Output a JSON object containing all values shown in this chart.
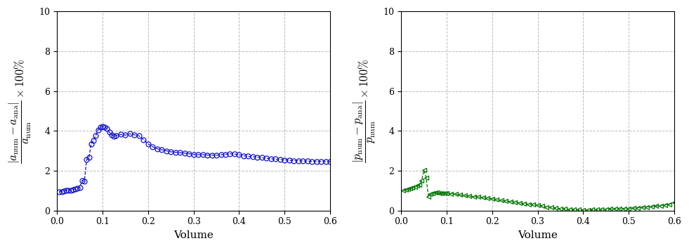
{
  "left": {
    "ylabel": "$\\dfrac{|a_{\\mathrm{num}} - a_{\\mathrm{ana}}|}{a_{\\mathrm{num}}} \\times 100\\%$",
    "xlabel": "Volume",
    "xlim": [
      0.0,
      0.6
    ],
    "ylim": [
      0.0,
      10.0
    ],
    "yticks": [
      0,
      2,
      4,
      6,
      8,
      10
    ],
    "xticks": [
      0.0,
      0.1,
      0.2,
      0.3,
      0.4,
      0.5,
      0.6
    ],
    "color": "#1111cc",
    "x": [
      0.005,
      0.01,
      0.015,
      0.02,
      0.025,
      0.03,
      0.035,
      0.04,
      0.045,
      0.05,
      0.055,
      0.06,
      0.065,
      0.07,
      0.075,
      0.08,
      0.085,
      0.09,
      0.095,
      0.1,
      0.105,
      0.11,
      0.115,
      0.12,
      0.125,
      0.13,
      0.14,
      0.15,
      0.16,
      0.17,
      0.18,
      0.19,
      0.2,
      0.21,
      0.22,
      0.23,
      0.24,
      0.25,
      0.26,
      0.27,
      0.28,
      0.29,
      0.3,
      0.31,
      0.32,
      0.33,
      0.34,
      0.35,
      0.36,
      0.37,
      0.38,
      0.39,
      0.4,
      0.41,
      0.42,
      0.43,
      0.44,
      0.45,
      0.46,
      0.47,
      0.48,
      0.49,
      0.5,
      0.51,
      0.52,
      0.53,
      0.54,
      0.55,
      0.56,
      0.57,
      0.58,
      0.59,
      0.6
    ],
    "y": [
      0.95,
      0.95,
      0.97,
      1.0,
      1.0,
      1.02,
      1.05,
      1.08,
      1.12,
      1.15,
      1.5,
      1.47,
      2.55,
      2.65,
      3.35,
      3.52,
      3.75,
      4.05,
      4.18,
      4.22,
      4.18,
      4.1,
      3.92,
      3.8,
      3.72,
      3.75,
      3.82,
      3.78,
      3.85,
      3.8,
      3.75,
      3.55,
      3.35,
      3.2,
      3.1,
      3.05,
      3.0,
      2.95,
      2.92,
      2.9,
      2.88,
      2.85,
      2.82,
      2.8,
      2.8,
      2.78,
      2.78,
      2.77,
      2.8,
      2.82,
      2.85,
      2.83,
      2.8,
      2.75,
      2.72,
      2.7,
      2.68,
      2.65,
      2.62,
      2.6,
      2.58,
      2.56,
      2.54,
      2.52,
      2.5,
      2.5,
      2.49,
      2.48,
      2.47,
      2.47,
      2.46,
      2.46,
      2.46
    ]
  },
  "right": {
    "ylabel": "$\\dfrac{|p_{\\mathrm{num}} - p_{\\mathrm{ana}}|}{p_{\\mathrm{num}}} \\times 100\\%$",
    "xlabel": "Volume",
    "xlim": [
      0.0,
      0.6
    ],
    "ylim": [
      0.0,
      10.0
    ],
    "yticks": [
      0,
      2,
      4,
      6,
      8,
      10
    ],
    "xticks": [
      0.0,
      0.1,
      0.2,
      0.3,
      0.4,
      0.5,
      0.6
    ],
    "color": "#007700",
    "x": [
      0.005,
      0.01,
      0.015,
      0.02,
      0.025,
      0.03,
      0.035,
      0.04,
      0.045,
      0.05,
      0.055,
      0.06,
      0.065,
      0.07,
      0.075,
      0.08,
      0.085,
      0.09,
      0.095,
      0.1,
      0.11,
      0.12,
      0.13,
      0.14,
      0.15,
      0.16,
      0.17,
      0.18,
      0.19,
      0.2,
      0.21,
      0.22,
      0.23,
      0.24,
      0.25,
      0.26,
      0.27,
      0.28,
      0.29,
      0.3,
      0.31,
      0.32,
      0.33,
      0.34,
      0.35,
      0.36,
      0.37,
      0.38,
      0.39,
      0.4,
      0.41,
      0.42,
      0.43,
      0.44,
      0.45,
      0.46,
      0.47,
      0.48,
      0.49,
      0.5,
      0.51,
      0.52,
      0.53,
      0.54,
      0.55,
      0.56,
      0.57,
      0.58,
      0.59,
      0.6
    ],
    "y": [
      1.0,
      1.05,
      1.08,
      1.1,
      1.15,
      1.2,
      1.25,
      1.3,
      1.5,
      2.02,
      1.65,
      0.7,
      0.85,
      0.88,
      0.9,
      0.9,
      0.88,
      0.88,
      0.88,
      0.88,
      0.85,
      0.82,
      0.78,
      0.75,
      0.72,
      0.7,
      0.68,
      0.65,
      0.62,
      0.6,
      0.55,
      0.5,
      0.48,
      0.45,
      0.42,
      0.38,
      0.35,
      0.32,
      0.3,
      0.28,
      0.22,
      0.18,
      0.15,
      0.12,
      0.1,
      0.08,
      0.06,
      0.05,
      0.04,
      0.03,
      0.03,
      0.04,
      0.05,
      0.06,
      0.07,
      0.08,
      0.09,
      0.1,
      0.1,
      0.1,
      0.12,
      0.14,
      0.16,
      0.18,
      0.2,
      0.22,
      0.25,
      0.28,
      0.32,
      0.4
    ]
  }
}
